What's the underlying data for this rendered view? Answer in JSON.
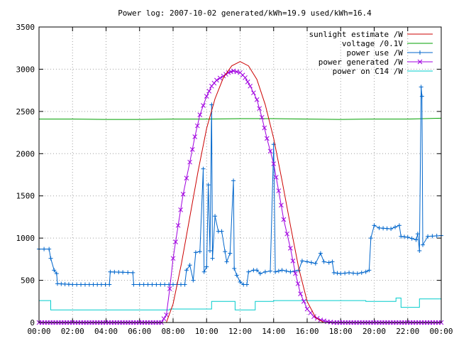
{
  "chart_data": {
    "type": "line",
    "title": "Power log: 2007-10-02 generated/kWh=19.9 used/kWh=16.4",
    "xlabel": "",
    "ylabel": "",
    "x_unit": "hours of day",
    "xlim": [
      0,
      24
    ],
    "ylim": [
      0,
      3500
    ],
    "x_ticks": [
      {
        "v": 0,
        "label": "00:00"
      },
      {
        "v": 2,
        "label": "02:00"
      },
      {
        "v": 4,
        "label": "04:00"
      },
      {
        "v": 6,
        "label": "06:00"
      },
      {
        "v": 8,
        "label": "08:00"
      },
      {
        "v": 10,
        "label": "10:00"
      },
      {
        "v": 12,
        "label": "12:00"
      },
      {
        "v": 14,
        "label": "14:00"
      },
      {
        "v": 16,
        "label": "16:00"
      },
      {
        "v": 18,
        "label": "18:00"
      },
      {
        "v": 20,
        "label": "20:00"
      },
      {
        "v": 22,
        "label": "22:00"
      },
      {
        "v": 24,
        "label": "00:00"
      }
    ],
    "y_ticks": [
      0,
      500,
      1000,
      1500,
      2000,
      2500,
      3000,
      3500
    ],
    "grid": true,
    "legend_position": "top-right",
    "series": [
      {
        "name": "sunlight estimate /W",
        "color": "#cc0000",
        "marker": "none",
        "points": [
          [
            0,
            0
          ],
          [
            7.6,
            0
          ],
          [
            8.0,
            220
          ],
          [
            8.5,
            700
          ],
          [
            9.0,
            1250
          ],
          [
            9.5,
            1800
          ],
          [
            10.0,
            2300
          ],
          [
            10.5,
            2650
          ],
          [
            11.0,
            2900
          ],
          [
            11.5,
            3040
          ],
          [
            12.0,
            3090
          ],
          [
            12.5,
            3040
          ],
          [
            13.0,
            2880
          ],
          [
            13.5,
            2580
          ],
          [
            14.0,
            2180
          ],
          [
            14.5,
            1680
          ],
          [
            15.0,
            1150
          ],
          [
            15.5,
            640
          ],
          [
            16.0,
            250
          ],
          [
            16.5,
            60
          ],
          [
            17.0,
            0
          ],
          [
            24,
            0
          ]
        ]
      },
      {
        "name": "voltage /0.1V",
        "color": "#00a000",
        "marker": "none",
        "points": [
          [
            0,
            2410
          ],
          [
            2,
            2410
          ],
          [
            4,
            2405
          ],
          [
            6,
            2405
          ],
          [
            8,
            2410
          ],
          [
            10,
            2410
          ],
          [
            12,
            2415
          ],
          [
            14,
            2415
          ],
          [
            16,
            2410
          ],
          [
            18,
            2405
          ],
          [
            20,
            2410
          ],
          [
            22,
            2410
          ],
          [
            24,
            2420
          ]
        ]
      },
      {
        "name": "power use /W",
        "color": "#0066cc",
        "marker": "plus",
        "points": [
          [
            0,
            870
          ],
          [
            0.6,
            870
          ],
          [
            0.7,
            760
          ],
          [
            0.9,
            620
          ],
          [
            1.05,
            580
          ],
          [
            1.1,
            460
          ],
          [
            2,
            450
          ],
          [
            3,
            450
          ],
          [
            4.2,
            450
          ],
          [
            4.25,
            600
          ],
          [
            5,
            595
          ],
          [
            5.6,
            590
          ],
          [
            5.65,
            450
          ],
          [
            6,
            450
          ],
          [
            7,
            450
          ],
          [
            8,
            450
          ],
          [
            8.7,
            450
          ],
          [
            8.8,
            620
          ],
          [
            9.0,
            680
          ],
          [
            9.2,
            500
          ],
          [
            9.35,
            830
          ],
          [
            9.6,
            840
          ],
          [
            9.8,
            1820
          ],
          [
            9.85,
            600
          ],
          [
            10.0,
            660
          ],
          [
            10.1,
            1630
          ],
          [
            10.2,
            850
          ],
          [
            10.3,
            2580
          ],
          [
            10.35,
            760
          ],
          [
            10.5,
            1260
          ],
          [
            10.7,
            1080
          ],
          [
            10.9,
            1080
          ],
          [
            11.1,
            840
          ],
          [
            11.2,
            720
          ],
          [
            11.4,
            820
          ],
          [
            11.6,
            1680
          ],
          [
            11.65,
            640
          ],
          [
            11.8,
            560
          ],
          [
            12.0,
            480
          ],
          [
            12.2,
            450
          ],
          [
            12.4,
            450
          ],
          [
            12.5,
            600
          ],
          [
            12.8,
            620
          ],
          [
            13.0,
            620
          ],
          [
            13.2,
            580
          ],
          [
            13.5,
            600
          ],
          [
            13.8,
            610
          ],
          [
            14.0,
            2110
          ],
          [
            14.1,
            600
          ],
          [
            14.5,
            620
          ],
          [
            15.0,
            600
          ],
          [
            15.5,
            620
          ],
          [
            15.7,
            730
          ],
          [
            16.0,
            720
          ],
          [
            16.5,
            700
          ],
          [
            16.8,
            820
          ],
          [
            17.0,
            720
          ],
          [
            17.3,
            710
          ],
          [
            17.5,
            720
          ],
          [
            17.6,
            590
          ],
          [
            18.0,
            580
          ],
          [
            18.5,
            590
          ],
          [
            19.0,
            580
          ],
          [
            19.5,
            600
          ],
          [
            19.7,
            620
          ],
          [
            19.8,
            1000
          ],
          [
            20.0,
            1150
          ],
          [
            20.3,
            1120
          ],
          [
            21.0,
            1110
          ],
          [
            21.5,
            1150
          ],
          [
            21.6,
            1020
          ],
          [
            22.0,
            1010
          ],
          [
            22.5,
            980
          ],
          [
            22.6,
            1050
          ],
          [
            22.7,
            850
          ],
          [
            22.8,
            2790
          ],
          [
            22.85,
            2680
          ],
          [
            22.9,
            920
          ],
          [
            23.2,
            1020
          ],
          [
            24,
            1030
          ]
        ]
      },
      {
        "name": "power generated /W",
        "color": "#a000e0",
        "marker": "cross",
        "points": [
          [
            0,
            0
          ],
          [
            7.3,
            0
          ],
          [
            7.6,
            90
          ],
          [
            7.8,
            400
          ],
          [
            8.0,
            760
          ],
          [
            8.3,
            1150
          ],
          [
            8.6,
            1520
          ],
          [
            9.0,
            1900
          ],
          [
            9.3,
            2200
          ],
          [
            9.6,
            2460
          ],
          [
            10.0,
            2680
          ],
          [
            10.3,
            2800
          ],
          [
            10.6,
            2870
          ],
          [
            11.0,
            2920
          ],
          [
            11.3,
            2960
          ],
          [
            11.6,
            2980
          ],
          [
            12.0,
            2960
          ],
          [
            12.3,
            2900
          ],
          [
            12.6,
            2800
          ],
          [
            13.0,
            2640
          ],
          [
            13.3,
            2430
          ],
          [
            13.6,
            2180
          ],
          [
            14.0,
            1880
          ],
          [
            14.3,
            1560
          ],
          [
            14.6,
            1220
          ],
          [
            15.0,
            880
          ],
          [
            15.3,
            580
          ],
          [
            15.6,
            340
          ],
          [
            16.0,
            160
          ],
          [
            16.4,
            70
          ],
          [
            16.8,
            30
          ],
          [
            17.2,
            10
          ],
          [
            17.6,
            0
          ],
          [
            24,
            0
          ]
        ]
      },
      {
        "name": "power on C14 /W",
        "color": "#00cccc",
        "marker": "none",
        "points": [
          [
            0,
            260
          ],
          [
            0.7,
            260
          ],
          [
            0.7,
            150
          ],
          [
            7.8,
            150
          ],
          [
            7.8,
            160
          ],
          [
            10.3,
            160
          ],
          [
            10.3,
            250
          ],
          [
            11.7,
            250
          ],
          [
            11.7,
            150
          ],
          [
            12.9,
            150
          ],
          [
            12.9,
            250
          ],
          [
            14.0,
            250
          ],
          [
            14.0,
            260
          ],
          [
            19.5,
            260
          ],
          [
            19.5,
            250
          ],
          [
            21.3,
            250
          ],
          [
            21.3,
            290
          ],
          [
            21.6,
            290
          ],
          [
            21.6,
            180
          ],
          [
            22.7,
            180
          ],
          [
            22.7,
            280
          ],
          [
            24,
            280
          ]
        ]
      }
    ]
  }
}
